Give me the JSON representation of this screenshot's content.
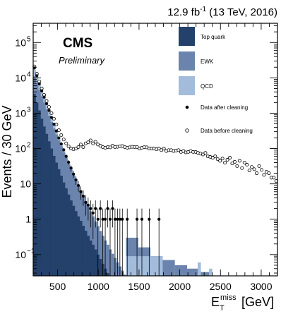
{
  "chart_data": {
    "type": "area",
    "lumi_text": "12.9 fb",
    "lumi_exponent": "-1",
    "lumi_suffix": "(13 TeV, 2016)",
    "experiment": "CMS",
    "status": "Preliminary",
    "ylabel": "Events / 30 GeV",
    "xlabel": {
      "base": "E",
      "sup": "miss",
      "sub": "T",
      "unit": "[GeV]"
    },
    "xlim": [
      200,
      3200
    ],
    "ylim": [
      0.025,
      350000
    ],
    "yscale": "log",
    "xticks": [
      500,
      1000,
      1500,
      2000,
      2500,
      3000
    ],
    "xtick_labels": [
      "500",
      "1000",
      "1500",
      "2000",
      "2500",
      "3000"
    ],
    "yticks": [
      {
        "value": 0.1,
        "base": "10",
        "exp": "−1"
      },
      {
        "value": 1,
        "base": "1",
        "exp": ""
      },
      {
        "value": 10,
        "base": "10",
        "exp": ""
      },
      {
        "value": 100,
        "base": "10",
        "exp": "2"
      },
      {
        "value": 1000,
        "base": "10",
        "exp": "3"
      },
      {
        "value": 10000,
        "base": "10",
        "exp": "4"
      },
      {
        "value": 100000,
        "base": "10",
        "exp": "5"
      }
    ],
    "colors": {
      "top": "#23416a",
      "ewk": "#6b84ad",
      "qcd": "#a3bcdc"
    },
    "legend": [
      {
        "label": "Top quark",
        "kind": "box",
        "color": "#23416a"
      },
      {
        "label": "EWK",
        "kind": "box",
        "color": "#6b84ad"
      },
      {
        "label": "QCD",
        "kind": "box",
        "color": "#a3bcdc"
      },
      {
        "label": "Data after cleaning",
        "kind": "filled"
      },
      {
        "label": "Data before cleaning",
        "kind": "open"
      }
    ],
    "stack_cumulative": {
      "x_start": 200,
      "bin_width": 30,
      "top": [
        3500,
        2000,
        1200,
        700,
        420,
        260,
        160,
        100,
        62,
        40,
        26,
        17,
        11,
        7.5,
        5,
        3.4,
        2.4,
        1.7,
        1.2,
        0.9,
        0.65,
        0.47,
        0.34,
        0.25,
        0.19,
        0.14,
        0.1,
        0.075,
        0.055,
        0.04,
        0.03
      ],
      "ewk": [
        11000,
        7200,
        4600,
        3000,
        2000,
        1300,
        850,
        560,
        370,
        250,
        170,
        115,
        78,
        53,
        36,
        25,
        17.5,
        12.3,
        8.6,
        6.1,
        4.3,
        3.05,
        2.2,
        1.6,
        1.15,
        0.85,
        0.62,
        0.46,
        0.34,
        0.25,
        0.19,
        0.14,
        0.105,
        0.08,
        0.06,
        0.046,
        0.035,
        0.027
      ],
      "qcd": [
        17000,
        11000,
        6800,
        4300,
        2800,
        1800,
        1150,
        740,
        480,
        310,
        200,
        135,
        90,
        61,
        42,
        29,
        20,
        14,
        9.6,
        6.7,
        4.7,
        3.3,
        2.35,
        1.7,
        1.22,
        0.88,
        0.64,
        0.47,
        0.34,
        0.25,
        0.19,
        0.14,
        0.105,
        0.08,
        0.06,
        0.046,
        0.035,
        0.027
      ]
    },
    "ewk_tail": [
      {
        "x1": 1340,
        "x2": 1490,
        "y": 0.3
      },
      {
        "x1": 1490,
        "x2": 1640,
        "y": 0.16
      },
      {
        "x1": 1640,
        "x2": 1790,
        "y": 0.09
      },
      {
        "x1": 1790,
        "x2": 1940,
        "y": 0.07
      },
      {
        "x1": 1940,
        "x2": 2090,
        "y": 0.05
      },
      {
        "x1": 2090,
        "x2": 2240,
        "y": 0.04
      },
      {
        "x1": 2240,
        "x2": 2380,
        "y": 0.032
      }
    ],
    "qcd_tail": [
      {
        "x1": 1340,
        "x2": 1790,
        "y": 0.09
      },
      {
        "x1": 2220,
        "x2": 2260,
        "y": 0.06
      },
      {
        "x1": 2360,
        "x2": 2400,
        "y": 0.04
      }
    ],
    "series": [
      {
        "name": "Data after cleaning",
        "x": [
          215,
          245,
          275,
          305,
          335,
          365,
          395,
          425,
          455,
          485,
          515,
          545,
          575,
          605,
          635,
          665,
          695,
          725,
          755,
          785,
          815,
          845,
          875,
          905,
          935,
          965,
          995,
          1025,
          1055,
          1085,
          1115,
          1145,
          1175,
          1205,
          1235,
          1265,
          1295,
          1355,
          1475,
          1535,
          1625,
          1745
        ],
        "y": [
          19000,
          11500,
          6800,
          4300,
          2850,
          1850,
          1200,
          760,
          490,
          315,
          200,
          135,
          92,
          60,
          41,
          28,
          19,
          13,
          9,
          6,
          4.5,
          3,
          2.5,
          2,
          1.5,
          2,
          1,
          2,
          1,
          1,
          2,
          1,
          2,
          1,
          1,
          1,
          1,
          1,
          1,
          1,
          1,
          1
        ]
      },
      {
        "name": "Data before cleaning",
        "x": [
          215,
          245,
          275,
          305,
          335,
          365,
          395,
          425,
          455,
          485,
          515,
          545,
          575,
          605,
          635,
          665,
          695,
          725,
          755,
          785,
          815,
          845,
          875,
          905,
          935,
          965,
          995,
          1025,
          1055,
          1085,
          1115,
          1145,
          1175,
          1205,
          1235,
          1265,
          1295,
          1325,
          1355,
          1385,
          1415,
          1445,
          1475,
          1505,
          1535,
          1565,
          1595,
          1625,
          1655,
          1685,
          1715,
          1745,
          1775,
          1805,
          1835,
          1865,
          1895,
          1925,
          1955,
          1985,
          2015,
          2045,
          2075,
          2105,
          2135,
          2165,
          2195,
          2225,
          2255,
          2285,
          2315,
          2345,
          2375,
          2405,
          2435,
          2465,
          2495,
          2525,
          2555,
          2585,
          2615,
          2645,
          2675,
          2705,
          2735,
          2765,
          2795,
          2825,
          2855,
          2885,
          2915,
          2945,
          2975,
          3005,
          3035,
          3065,
          3095,
          3125,
          3155,
          3185
        ],
        "y": [
          21000,
          13000,
          7900,
          5000,
          3300,
          2200,
          1500,
          1000,
          700,
          480,
          330,
          240,
          180,
          140,
          115,
          100,
          95,
          100,
          110,
          130,
          110,
          140,
          150,
          170,
          140,
          155,
          130,
          120,
          110,
          105,
          110,
          108,
          120,
          110,
          112,
          115,
          118,
          110,
          105,
          108,
          112,
          110,
          110,
          100,
          105,
          110,
          108,
          100,
          100,
          100,
          95,
          100,
          90,
          100,
          85,
          90,
          90,
          85,
          88,
          90,
          80,
          85,
          78,
          80,
          85,
          80,
          80,
          75,
          72,
          68,
          75,
          60,
          58,
          55,
          60,
          50,
          45,
          52,
          40,
          48,
          55,
          38,
          42,
          32,
          45,
          28,
          40,
          35,
          24,
          30,
          26,
          20,
          32,
          25,
          18,
          22,
          20,
          15,
          15,
          12
        ]
      }
    ]
  }
}
